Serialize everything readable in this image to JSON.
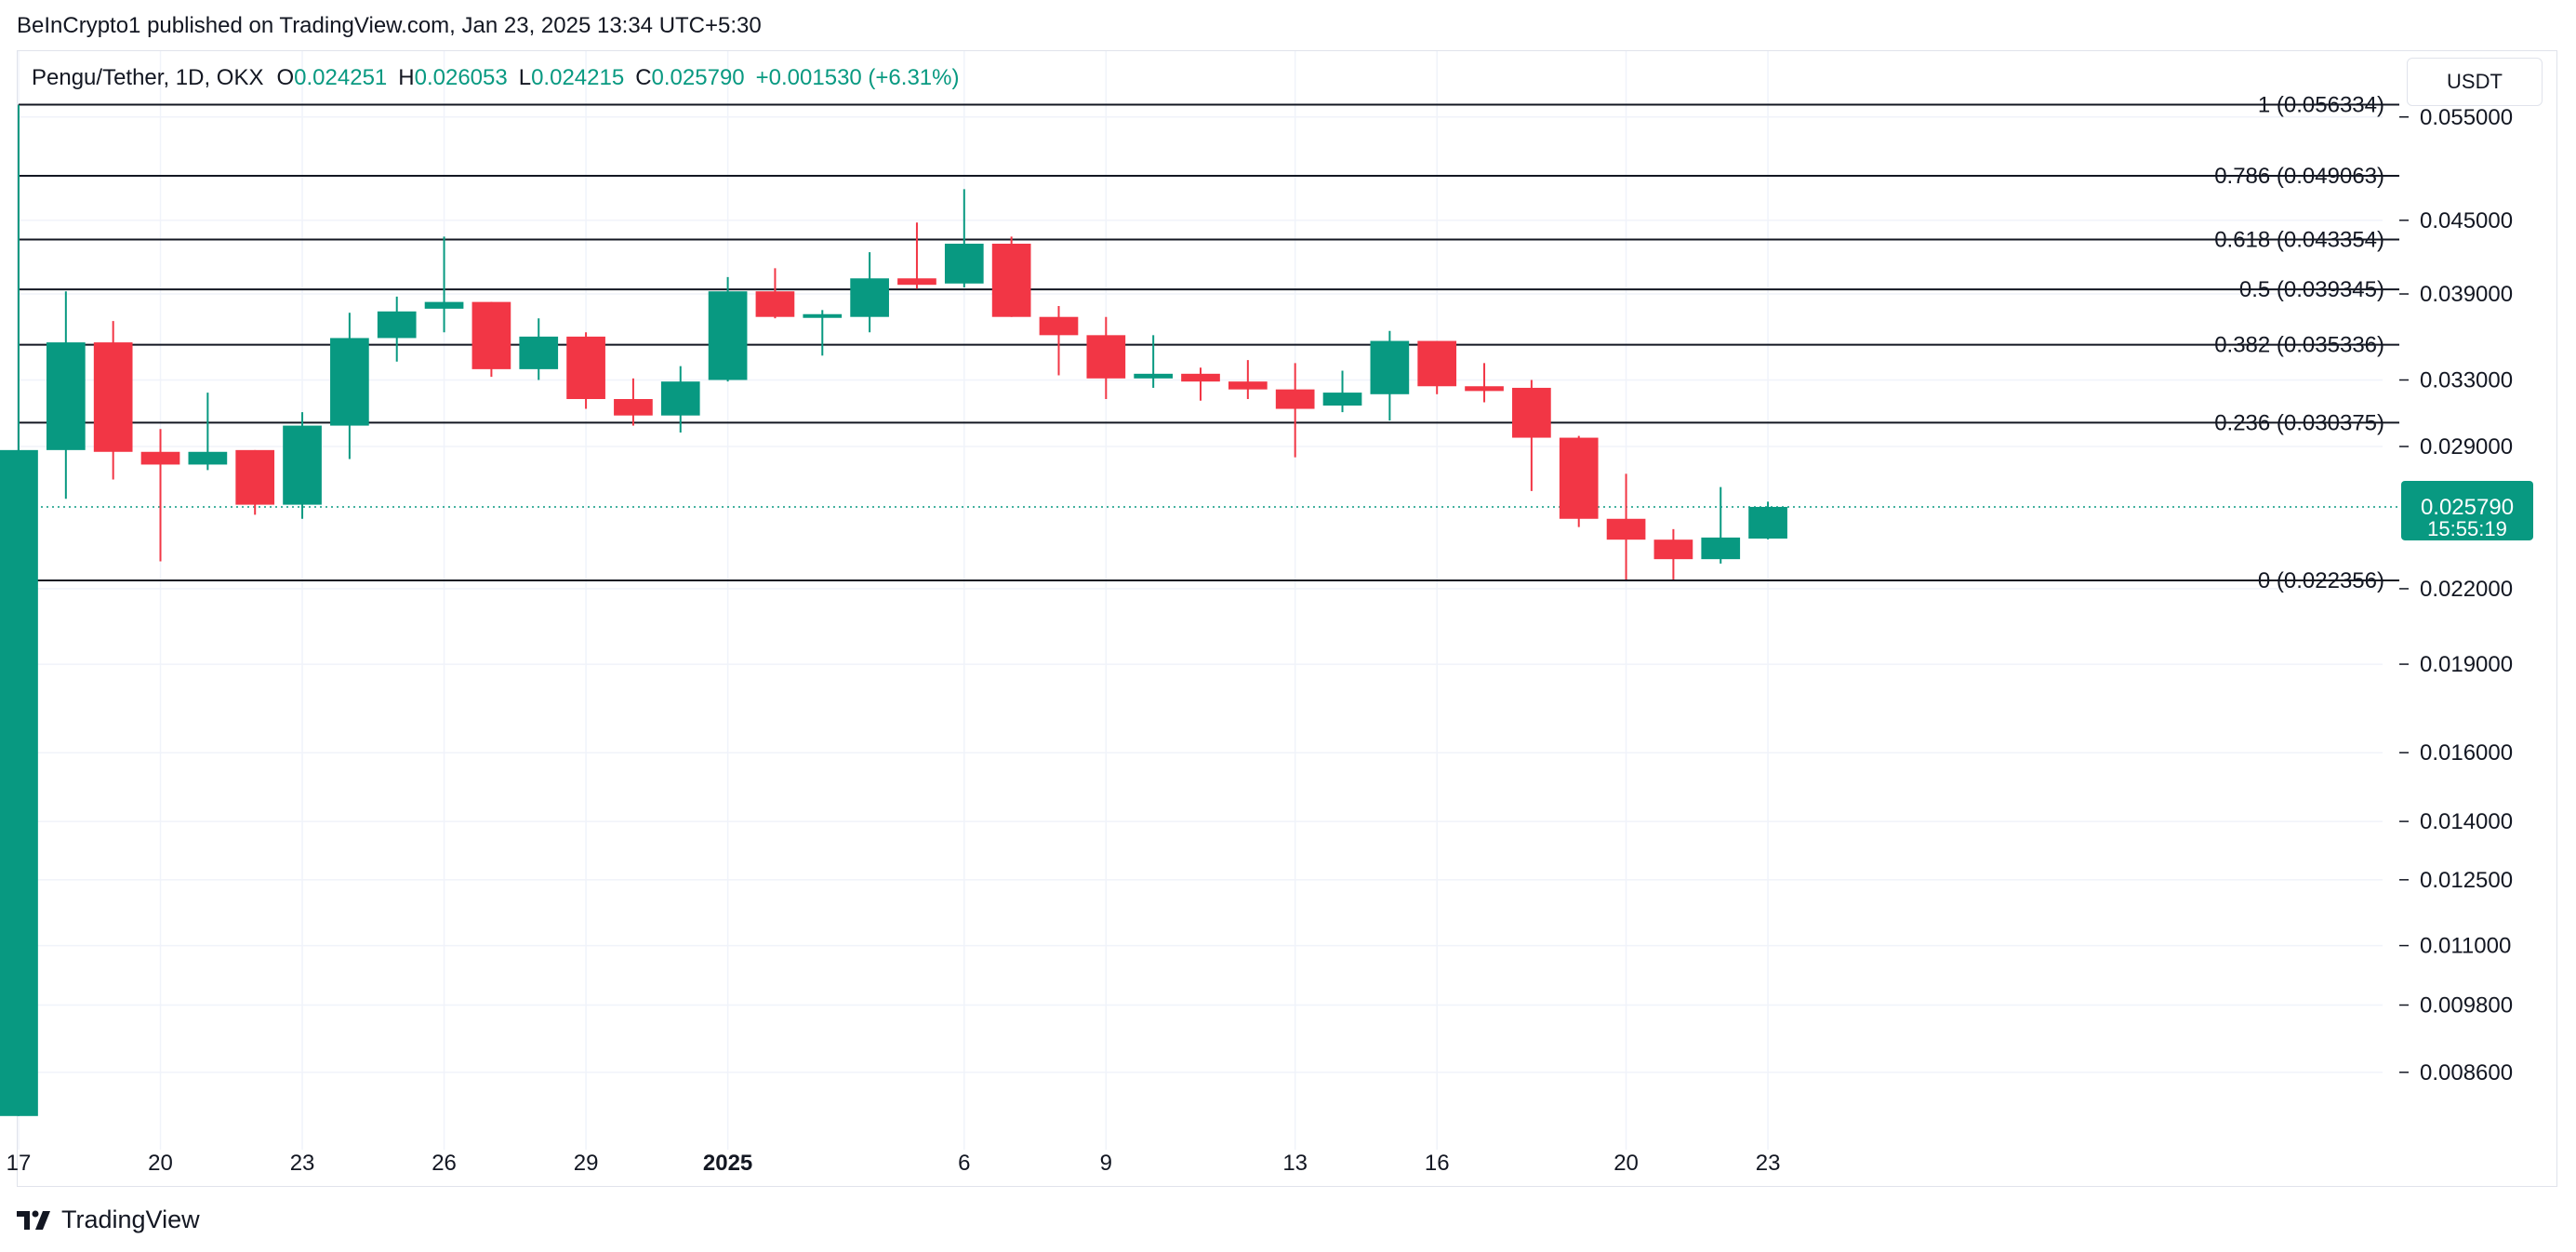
{
  "attribution": "BeInCrypto1 published on TradingView.com, Jan 23, 2025 13:34 UTC+5:30",
  "currency_button": "USDT",
  "footer": {
    "brand": "TradingView",
    "logo_icon": "tradingview-logo-icon"
  },
  "colors": {
    "up": "#089981",
    "down": "#f23645",
    "grid": "#f0f3fa",
    "fib_line": "#131722"
  },
  "legend": {
    "symbol": "Pengu/Tether, 1D, OKX",
    "o_label": "O",
    "o_value": "0.024251",
    "h_label": "H",
    "h_value": "0.026053",
    "l_label": "L",
    "l_value": "0.024215",
    "c_label": "C",
    "c_value": "0.025790",
    "change": "+0.001530 (+6.31%)"
  },
  "chart_data": {
    "type": "candlestick",
    "title": "Pengu/Tether, 1D, OKX",
    "y_scale": "log",
    "ylim": [
      0.0074,
      0.0625
    ],
    "xlim": [
      17,
      67
    ],
    "grid": true,
    "y_ticks": [
      "0.055000",
      "0.045000",
      "0.039000",
      "0.033000",
      "0.029000",
      "0.022000",
      "0.019000",
      "0.016000",
      "0.014000",
      "0.012500",
      "0.011000",
      "0.009800",
      "0.008600"
    ],
    "x_ticks": [
      {
        "day": 17,
        "label": "17",
        "bold": false
      },
      {
        "day": 20,
        "label": "20",
        "bold": false
      },
      {
        "day": 23,
        "label": "23",
        "bold": false
      },
      {
        "day": 26,
        "label": "26",
        "bold": false
      },
      {
        "day": 29,
        "label": "29",
        "bold": false
      },
      {
        "day": 32,
        "label": "2025",
        "bold": true
      },
      {
        "day": 37,
        "label": "6",
        "bold": false
      },
      {
        "day": 40,
        "label": "9",
        "bold": false
      },
      {
        "day": 44,
        "label": "13",
        "bold": false
      },
      {
        "day": 47,
        "label": "16",
        "bold": false
      },
      {
        "day": 51,
        "label": "20",
        "bold": false
      },
      {
        "day": 54,
        "label": "23",
        "bold": false
      }
    ],
    "fib_levels": [
      {
        "label": "1 (0.056334)",
        "value": 0.056334
      },
      {
        "label": "0.786 (0.049063)",
        "value": 0.049063
      },
      {
        "label": "0.618 (0.043354)",
        "value": 0.043354
      },
      {
        "label": "0.5 (0.039345)",
        "value": 0.039345
      },
      {
        "label": "0.382 (0.035336)",
        "value": 0.035336
      },
      {
        "label": "0.236 (0.030375)",
        "value": 0.030375
      },
      {
        "label": "0 (0.022356)",
        "value": 0.022356
      }
    ],
    "current_price": {
      "value": 0.02579,
      "label": "0.025790",
      "countdown": "15:55:19"
    },
    "candles": [
      {
        "day": 17,
        "o": 0.0079,
        "h": 0.0563,
        "l": 0.0079,
        "c": 0.0288
      },
      {
        "day": 18,
        "o": 0.0288,
        "h": 0.0392,
        "l": 0.0262,
        "c": 0.0355
      },
      {
        "day": 19,
        "o": 0.0355,
        "h": 0.037,
        "l": 0.0272,
        "c": 0.0287
      },
      {
        "day": 20,
        "o": 0.0287,
        "h": 0.03,
        "l": 0.0232,
        "c": 0.028
      },
      {
        "day": 21,
        "o": 0.028,
        "h": 0.0322,
        "l": 0.0277,
        "c": 0.0287
      },
      {
        "day": 22,
        "o": 0.0288,
        "h": 0.0288,
        "l": 0.0254,
        "c": 0.0259
      },
      {
        "day": 23,
        "o": 0.0259,
        "h": 0.031,
        "l": 0.0252,
        "c": 0.0302
      },
      {
        "day": 24,
        "o": 0.0302,
        "h": 0.0376,
        "l": 0.0283,
        "c": 0.0358
      },
      {
        "day": 25,
        "o": 0.0358,
        "h": 0.0388,
        "l": 0.0342,
        "c": 0.0377
      },
      {
        "day": 26,
        "o": 0.0379,
        "h": 0.0436,
        "l": 0.0362,
        "c": 0.0384
      },
      {
        "day": 27,
        "o": 0.0384,
        "h": 0.0384,
        "l": 0.0332,
        "c": 0.0337
      },
      {
        "day": 28,
        "o": 0.0337,
        "h": 0.0372,
        "l": 0.033,
        "c": 0.0359
      },
      {
        "day": 29,
        "o": 0.0359,
        "h": 0.0362,
        "l": 0.0312,
        "c": 0.0318
      },
      {
        "day": 30,
        "o": 0.0318,
        "h": 0.0331,
        "l": 0.0302,
        "c": 0.0308
      },
      {
        "day": 31,
        "o": 0.0308,
        "h": 0.0339,
        "l": 0.0298,
        "c": 0.0329
      },
      {
        "day": 32,
        "o": 0.033,
        "h": 0.0403,
        "l": 0.0329,
        "c": 0.0392
      },
      {
        "day": 33,
        "o": 0.0392,
        "h": 0.041,
        "l": 0.0372,
        "c": 0.0373
      },
      {
        "day": 34,
        "o": 0.0373,
        "h": 0.0378,
        "l": 0.0346,
        "c": 0.0375
      },
      {
        "day": 35,
        "o": 0.0373,
        "h": 0.0423,
        "l": 0.0362,
        "c": 0.0402
      },
      {
        "day": 36,
        "o": 0.0402,
        "h": 0.0448,
        "l": 0.0394,
        "c": 0.0397
      },
      {
        "day": 37,
        "o": 0.0398,
        "h": 0.0478,
        "l": 0.0395,
        "c": 0.043
      },
      {
        "day": 38,
        "o": 0.043,
        "h": 0.0436,
        "l": 0.0373,
        "c": 0.0373
      },
      {
        "day": 39,
        "o": 0.0373,
        "h": 0.0381,
        "l": 0.0333,
        "c": 0.036
      },
      {
        "day": 40,
        "o": 0.036,
        "h": 0.0373,
        "l": 0.0318,
        "c": 0.0331
      },
      {
        "day": 41,
        "o": 0.0331,
        "h": 0.036,
        "l": 0.0325,
        "c": 0.0334
      },
      {
        "day": 42,
        "o": 0.0334,
        "h": 0.0338,
        "l": 0.0317,
        "c": 0.0329
      },
      {
        "day": 43,
        "o": 0.0329,
        "h": 0.0343,
        "l": 0.0318,
        "c": 0.0324
      },
      {
        "day": 44,
        "o": 0.0324,
        "h": 0.0341,
        "l": 0.0284,
        "c": 0.0312
      },
      {
        "day": 45,
        "o": 0.0314,
        "h": 0.0336,
        "l": 0.031,
        "c": 0.0322
      },
      {
        "day": 46,
        "o": 0.0321,
        "h": 0.0363,
        "l": 0.0305,
        "c": 0.0356
      },
      {
        "day": 47,
        "o": 0.0356,
        "h": 0.0356,
        "l": 0.0321,
        "c": 0.0326
      },
      {
        "day": 48,
        "o": 0.0326,
        "h": 0.0341,
        "l": 0.0316,
        "c": 0.0323
      },
      {
        "day": 49,
        "o": 0.0325,
        "h": 0.033,
        "l": 0.0266,
        "c": 0.0295
      },
      {
        "day": 50,
        "o": 0.0295,
        "h": 0.0296,
        "l": 0.0248,
        "c": 0.0252
      },
      {
        "day": 51,
        "o": 0.0252,
        "h": 0.0275,
        "l": 0.0224,
        "c": 0.0242
      },
      {
        "day": 52,
        "o": 0.0242,
        "h": 0.0247,
        "l": 0.0224,
        "c": 0.0233
      },
      {
        "day": 53,
        "o": 0.0233,
        "h": 0.0268,
        "l": 0.0231,
        "c": 0.0243
      },
      {
        "day": 54,
        "o": 0.024251,
        "h": 0.026053,
        "l": 0.024215,
        "c": 0.02579
      }
    ]
  }
}
